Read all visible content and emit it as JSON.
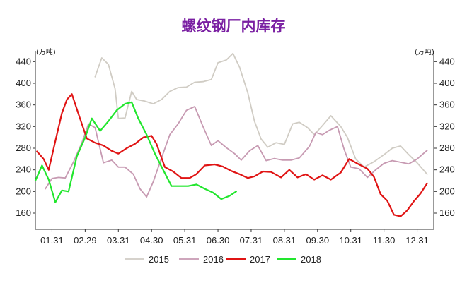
{
  "chart_data": {
    "type": "line",
    "title": "螺纹钢厂内库存",
    "unit_label": "(万吨)",
    "colors": {
      "title": "#7a1fa2",
      "2015": "#d0ccc4",
      "2016": "#c79ab2",
      "2017": "#e01414",
      "2018": "#22e62e"
    },
    "x_ticks": [
      "01.31",
      "02.29",
      "03.31",
      "04.30",
      "05.31",
      "06.30",
      "07.31",
      "08.31",
      "09.30",
      "10.31",
      "11.30",
      "12.31"
    ],
    "x_range": [
      0.5,
      12.5
    ],
    "ylim": [
      130,
      460
    ],
    "y_ticks": [
      160,
      200,
      240,
      280,
      320,
      360,
      400,
      440
    ],
    "series": [
      {
        "name": "2015",
        "points": [
          [
            2.3,
            412
          ],
          [
            2.5,
            447
          ],
          [
            2.7,
            435
          ],
          [
            2.9,
            390
          ],
          [
            3.0,
            335
          ],
          [
            3.2,
            336
          ],
          [
            3.4,
            385
          ],
          [
            3.55,
            370
          ],
          [
            3.8,
            367
          ],
          [
            4.05,
            362
          ],
          [
            4.3,
            370
          ],
          [
            4.55,
            385
          ],
          [
            4.8,
            392
          ],
          [
            5.05,
            393
          ],
          [
            5.3,
            402
          ],
          [
            5.55,
            403
          ],
          [
            5.8,
            407
          ],
          [
            6.0,
            438
          ],
          [
            6.25,
            443
          ],
          [
            6.45,
            455
          ],
          [
            6.65,
            430
          ],
          [
            6.9,
            382
          ],
          [
            7.1,
            330
          ],
          [
            7.3,
            297
          ],
          [
            7.5,
            282
          ],
          [
            7.75,
            290
          ],
          [
            8.0,
            287
          ],
          [
            8.25,
            325
          ],
          [
            8.45,
            328
          ],
          [
            8.7,
            318
          ],
          [
            8.9,
            305
          ],
          [
            9.15,
            322
          ],
          [
            9.4,
            340
          ],
          [
            9.7,
            320
          ],
          [
            9.9,
            300
          ],
          [
            10.15,
            260
          ],
          [
            10.4,
            245
          ],
          [
            10.7,
            255
          ],
          [
            11.0,
            268
          ],
          [
            11.25,
            280
          ],
          [
            11.5,
            284
          ],
          [
            11.75,
            268
          ],
          [
            12.0,
            253
          ],
          [
            12.3,
            232
          ]
        ]
      },
      {
        "name": "2016",
        "points": [
          [
            0.8,
            205
          ],
          [
            1.0,
            224
          ],
          [
            1.2,
            226
          ],
          [
            1.4,
            225
          ],
          [
            1.65,
            255
          ],
          [
            1.9,
            290
          ],
          [
            2.1,
            325
          ],
          [
            2.3,
            318
          ],
          [
            2.55,
            253
          ],
          [
            2.8,
            258
          ],
          [
            3.0,
            245
          ],
          [
            3.2,
            245
          ],
          [
            3.45,
            232
          ],
          [
            3.65,
            205
          ],
          [
            3.85,
            190
          ],
          [
            4.05,
            218
          ],
          [
            4.3,
            262
          ],
          [
            4.55,
            305
          ],
          [
            4.8,
            325
          ],
          [
            5.05,
            350
          ],
          [
            5.3,
            357
          ],
          [
            5.55,
            320
          ],
          [
            5.8,
            285
          ],
          [
            6.0,
            294
          ],
          [
            6.25,
            281
          ],
          [
            6.5,
            270
          ],
          [
            6.7,
            258
          ],
          [
            6.95,
            275
          ],
          [
            7.2,
            285
          ],
          [
            7.45,
            257
          ],
          [
            7.7,
            261
          ],
          [
            7.95,
            258
          ],
          [
            8.2,
            258
          ],
          [
            8.45,
            262
          ],
          [
            8.75,
            283
          ],
          [
            8.95,
            309
          ],
          [
            9.15,
            305
          ],
          [
            9.35,
            313
          ],
          [
            9.6,
            320
          ],
          [
            9.8,
            278
          ],
          [
            10.0,
            245
          ],
          [
            10.25,
            242
          ],
          [
            10.5,
            226
          ],
          [
            10.75,
            240
          ],
          [
            11.0,
            252
          ],
          [
            11.25,
            257
          ],
          [
            11.5,
            254
          ],
          [
            11.75,
            251
          ],
          [
            12.0,
            260
          ],
          [
            12.3,
            276
          ]
        ]
      },
      {
        "name": "2017",
        "points": [
          [
            0.55,
            274
          ],
          [
            0.75,
            260
          ],
          [
            0.9,
            240
          ],
          [
            1.1,
            293
          ],
          [
            1.3,
            345
          ],
          [
            1.45,
            370
          ],
          [
            1.6,
            380
          ],
          [
            1.8,
            343
          ],
          [
            2.05,
            298
          ],
          [
            2.3,
            290
          ],
          [
            2.55,
            285
          ],
          [
            2.8,
            275
          ],
          [
            3.0,
            270
          ],
          [
            3.25,
            280
          ],
          [
            3.5,
            288
          ],
          [
            3.75,
            300
          ],
          [
            4.0,
            303
          ],
          [
            4.15,
            288
          ],
          [
            4.4,
            245
          ],
          [
            4.65,
            237
          ],
          [
            4.9,
            225
          ],
          [
            5.15,
            225
          ],
          [
            5.35,
            232
          ],
          [
            5.6,
            248
          ],
          [
            5.9,
            250
          ],
          [
            6.15,
            246
          ],
          [
            6.4,
            238
          ],
          [
            6.65,
            232
          ],
          [
            6.9,
            225
          ],
          [
            7.1,
            228
          ],
          [
            7.35,
            237
          ],
          [
            7.6,
            236
          ],
          [
            7.9,
            226
          ],
          [
            8.15,
            240
          ],
          [
            8.4,
            226
          ],
          [
            8.65,
            232
          ],
          [
            8.9,
            222
          ],
          [
            9.15,
            230
          ],
          [
            9.4,
            222
          ],
          [
            9.7,
            235
          ],
          [
            9.95,
            260
          ],
          [
            10.25,
            250
          ],
          [
            10.5,
            242
          ],
          [
            10.7,
            227
          ],
          [
            10.9,
            195
          ],
          [
            11.1,
            183
          ],
          [
            11.3,
            157
          ],
          [
            11.5,
            154
          ],
          [
            11.7,
            165
          ],
          [
            11.9,
            182
          ],
          [
            12.1,
            196
          ],
          [
            12.3,
            215
          ]
        ]
      },
      {
        "name": "2018",
        "points": [
          [
            0.5,
            220
          ],
          [
            0.7,
            248
          ],
          [
            0.9,
            222
          ],
          [
            1.1,
            180
          ],
          [
            1.3,
            202
          ],
          [
            1.5,
            200
          ],
          [
            1.75,
            265
          ],
          [
            2.0,
            300
          ],
          [
            2.2,
            335
          ],
          [
            2.45,
            312
          ],
          [
            2.7,
            330
          ],
          [
            2.95,
            350
          ],
          [
            3.2,
            362
          ],
          [
            3.4,
            365
          ],
          [
            3.6,
            335
          ],
          [
            3.85,
            305
          ],
          [
            4.1,
            270
          ],
          [
            4.35,
            240
          ],
          [
            4.6,
            210
          ],
          [
            4.85,
            210
          ],
          [
            5.1,
            210
          ],
          [
            5.35,
            213
          ],
          [
            5.6,
            205
          ],
          [
            5.85,
            198
          ],
          [
            6.1,
            186
          ],
          [
            6.35,
            192
          ],
          [
            6.55,
            200
          ]
        ]
      }
    ],
    "legend": [
      "2015",
      "2016",
      "2017",
      "2018"
    ],
    "legend_position": "bottom",
    "grid": false
  }
}
